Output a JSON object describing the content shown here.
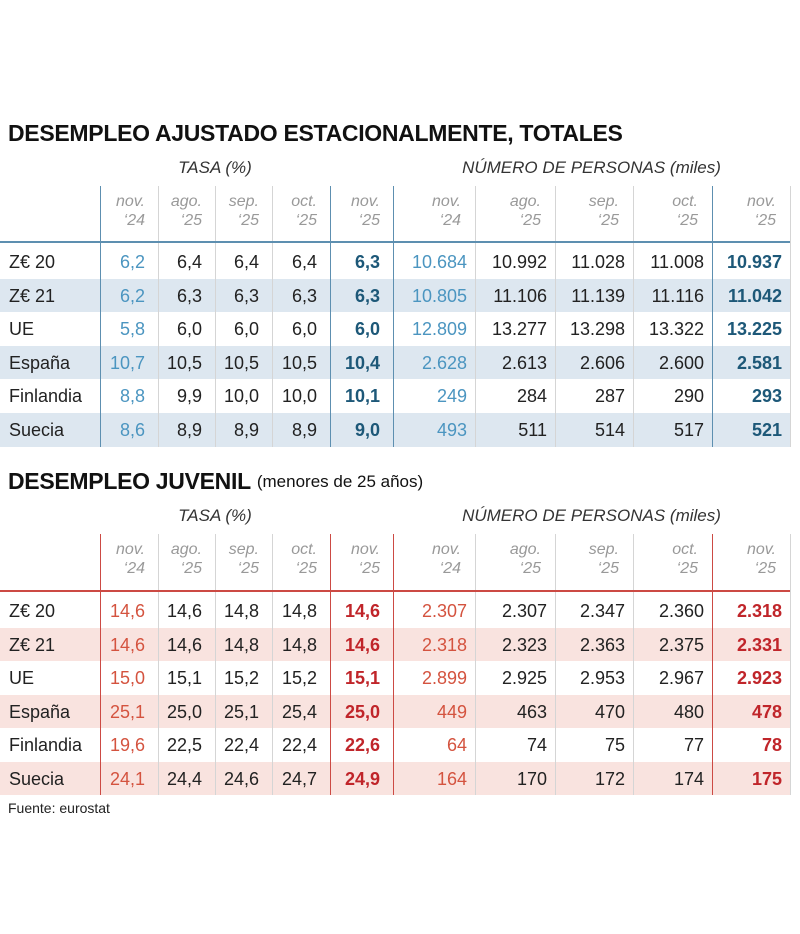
{
  "tables": [
    {
      "title": "DESEMPLEO AJUSTADO ESTACIONALMENTE, TOTALES",
      "groups": [
        "TASA (%)",
        "NÚMERO DE PERSONAS (miles)"
      ],
      "columns": [
        {
          "month": "nov.",
          "year": "‘24"
        },
        {
          "month": "ago.",
          "year": "‘25"
        },
        {
          "month": "sep.",
          "year": "‘25"
        },
        {
          "month": "oct.",
          "year": "‘25"
        },
        {
          "month": "nov.",
          "year": "‘25"
        }
      ],
      "rows": [
        {
          "label": "Z€ 20",
          "values": [
            "6,2",
            "6,4",
            "6,4",
            "6,4",
            "6,3",
            "10.684",
            "10.992",
            "11.028",
            "11.008",
            "10.937"
          ]
        },
        {
          "label": "Z€ 21",
          "values": [
            "6,2",
            "6,3",
            "6,3",
            "6,3",
            "6,3",
            "10.805",
            "11.106",
            "11.139",
            "11.116",
            "11.042"
          ]
        },
        {
          "label": "UE",
          "values": [
            "5,8",
            "6,0",
            "6,0",
            "6,0",
            "6,0",
            "12.809",
            "13.277",
            "13.298",
            "13.322",
            "13.225"
          ]
        },
        {
          "label": "España",
          "values": [
            "10,7",
            "10,5",
            "10,5",
            "10,5",
            "10,4",
            "2.628",
            "2.613",
            "2.606",
            "2.600",
            "2.581"
          ]
        },
        {
          "label": "Finlandia",
          "values": [
            "8,8",
            "9,9",
            "10,0",
            "10,0",
            "10,1",
            "249",
            "284",
            "287",
            "290",
            "293"
          ]
        },
        {
          "label": "Suecia",
          "values": [
            "8,6",
            "8,9",
            "8,9",
            "8,9",
            "9,0",
            "493",
            "511",
            "514",
            "517",
            "521"
          ]
        }
      ]
    },
    {
      "title": "DESEMPLEO JUVENIL",
      "subtitle": "(menores de 25 años)",
      "groups": [
        "TASA (%)",
        "NÚMERO DE PERSONAS (miles)"
      ],
      "columns": [
        {
          "month": "nov.",
          "year": "‘24"
        },
        {
          "month": "ago.",
          "year": "‘25"
        },
        {
          "month": "sep.",
          "year": "‘25"
        },
        {
          "month": "oct.",
          "year": "‘25"
        },
        {
          "month": "nov.",
          "year": "‘25"
        }
      ],
      "rows": [
        {
          "label": "Z€ 20",
          "values": [
            "14,6",
            "14,6",
            "14,8",
            "14,8",
            "14,6",
            "2.307",
            "2.307",
            "2.347",
            "2.360",
            "2.318"
          ]
        },
        {
          "label": "Z€ 21",
          "values": [
            "14,6",
            "14,6",
            "14,8",
            "14,8",
            "14,6",
            "2.318",
            "2.323",
            "2.363",
            "2.375",
            "2.331"
          ]
        },
        {
          "label": "UE",
          "values": [
            "15,0",
            "15,1",
            "15,2",
            "15,2",
            "15,1",
            "2.899",
            "2.925",
            "2.953",
            "2.967",
            "2.923"
          ]
        },
        {
          "label": "España",
          "values": [
            "25,1",
            "25,0",
            "25,1",
            "25,4",
            "25,0",
            "449",
            "463",
            "470",
            "480",
            "478"
          ]
        },
        {
          "label": "Finlandia",
          "values": [
            "19,6",
            "22,5",
            "22,4",
            "22,4",
            "22,6",
            "64",
            "74",
            "75",
            "77",
            "78"
          ]
        },
        {
          "label": "Suecia",
          "values": [
            "24,1",
            "24,4",
            "24,6",
            "24,7",
            "24,9",
            "164",
            "170",
            "172",
            "174",
            "175"
          ]
        }
      ]
    }
  ],
  "source": "Fuente: eurostat"
}
